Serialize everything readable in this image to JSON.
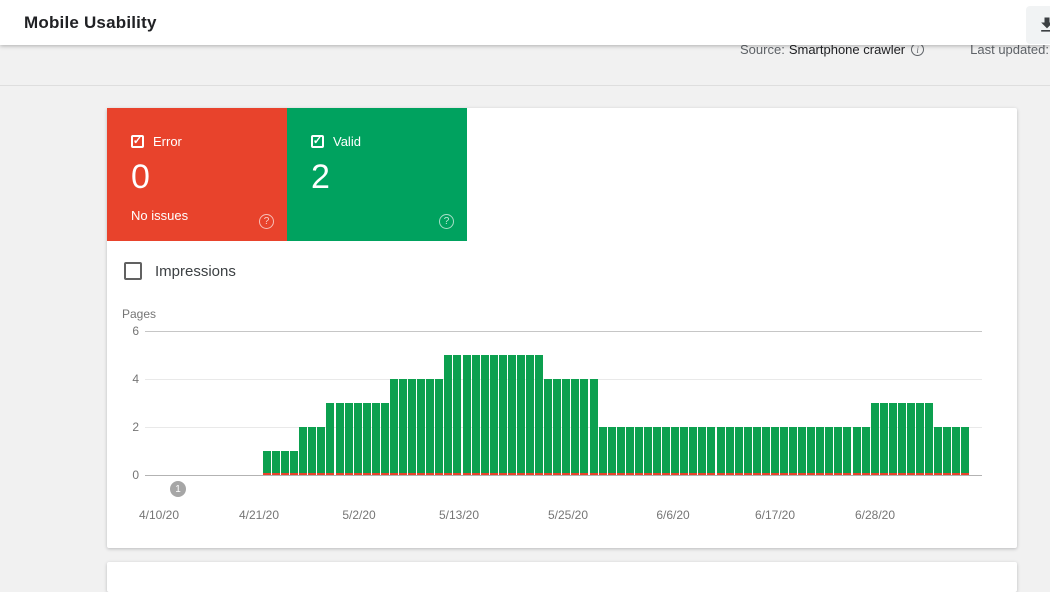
{
  "header": {
    "title": "Mobile Usability"
  },
  "toolbar": {
    "export_icon": "download-icon"
  },
  "meta_bar": {
    "source_label": "Source:",
    "source_value": "Smartphone crawler",
    "info_icon": "i",
    "last_updated_label": "Last updated:"
  },
  "status_cards": {
    "error": {
      "label": "Error",
      "count": "0",
      "sublabel": "No issues",
      "checked": true,
      "help_icon": "?"
    },
    "valid": {
      "label": "Valid",
      "count": "2",
      "sublabel": "",
      "checked": true,
      "help_icon": "?"
    }
  },
  "impressions_toggle": {
    "label": "Impressions",
    "checked": false
  },
  "chart_data": {
    "type": "bar",
    "title": "",
    "ylabel": "Pages",
    "ylim": [
      0,
      6
    ],
    "y_ticks": [
      6,
      4,
      2,
      0
    ],
    "grid": true,
    "x_tick_labels": [
      "4/10/20",
      "4/21/20",
      "5/2/20",
      "5/13/20",
      "5/25/20",
      "6/6/20",
      "6/17/20",
      "6/28/20"
    ],
    "series": [
      {
        "name": "Valid",
        "color": "#0ca04f",
        "values": [
          1,
          1,
          1,
          1,
          2,
          2,
          2,
          3,
          3,
          3,
          3,
          3,
          3,
          3,
          4,
          4,
          4,
          4,
          4,
          4,
          5,
          5,
          5,
          5,
          5,
          5,
          5,
          5,
          5,
          5,
          5,
          4,
          4,
          4,
          4,
          4,
          4,
          2,
          2,
          2,
          2,
          2,
          2,
          2,
          2,
          2,
          2,
          2,
          2,
          2,
          2,
          2,
          2,
          2,
          2,
          2,
          2,
          2,
          2,
          2,
          2,
          2,
          2,
          2,
          2,
          2,
          2,
          3,
          3,
          3,
          3,
          3,
          3,
          3,
          2,
          2,
          2,
          2
        ]
      },
      {
        "name": "Error",
        "color": "#e8432c",
        "constant_value": 0
      }
    ],
    "annotation_marker": {
      "label": "1"
    },
    "legend_position": "none"
  },
  "colors": {
    "error": "#e8432c",
    "valid": "#00a25f",
    "bar": "#0ca04f",
    "page_background": "#f1f1f1"
  }
}
